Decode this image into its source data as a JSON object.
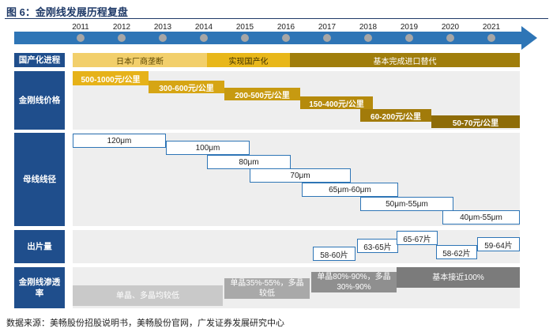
{
  "title": "图 6：金刚线发展历程复盘",
  "years": [
    "2011",
    "2012",
    "2013",
    "2014",
    "2015",
    "2016",
    "2017",
    "2018",
    "2019",
    "2020",
    "2021"
  ],
  "colors": {
    "arrow": "#2e75b6",
    "label_bg": "#1f4e8c",
    "domestic_1": "#f2cf6b",
    "domestic_2": "#e8b71a",
    "domestic_3": "#a07e0c",
    "price": [
      "#e6b219",
      "#d6a514",
      "#c79a11",
      "#b58a0c",
      "#a27b0a",
      "#8e6c08"
    ],
    "box_border": "#2e75b6",
    "pen_1": "#c9c9c9",
    "pen_2": "#a9a9a9",
    "pen_3": "#8f8f8f",
    "pen_4": "#7b7b7b"
  },
  "rows": {
    "domestic": {
      "label": "国产化进程",
      "segments": [
        "日本厂商垄断",
        "实现国产化",
        "基本完成进口替代"
      ]
    },
    "price": {
      "label": "金刚线价格",
      "items": [
        "500-1000元/公里",
        "300-600元/公里",
        "200-500元/公里",
        "150-400元/公里",
        "60-200元/公里",
        "50-70元/公里"
      ]
    },
    "diameter": {
      "label": "母线线径",
      "items": [
        "120μm",
        "100μm",
        "80μm",
        "70μm",
        "65μm-60μm",
        "50μm-55μm",
        "40μm-55μm"
      ]
    },
    "yield": {
      "label": "出片量",
      "items": [
        "58-60片",
        "63-65片",
        "65-67片",
        "58-62片",
        "59-64片"
      ]
    },
    "penetration": {
      "label": "金刚线渗透率",
      "items": [
        "单晶、多晶均较低",
        "单晶35%-55%，多晶较低",
        "单晶80%-90%，多晶30%-90%",
        "基本接近100%"
      ]
    }
  },
  "source": "数据来源：美畅股份招股说明书，美畅股份官网，广发证券发展研究中心"
}
